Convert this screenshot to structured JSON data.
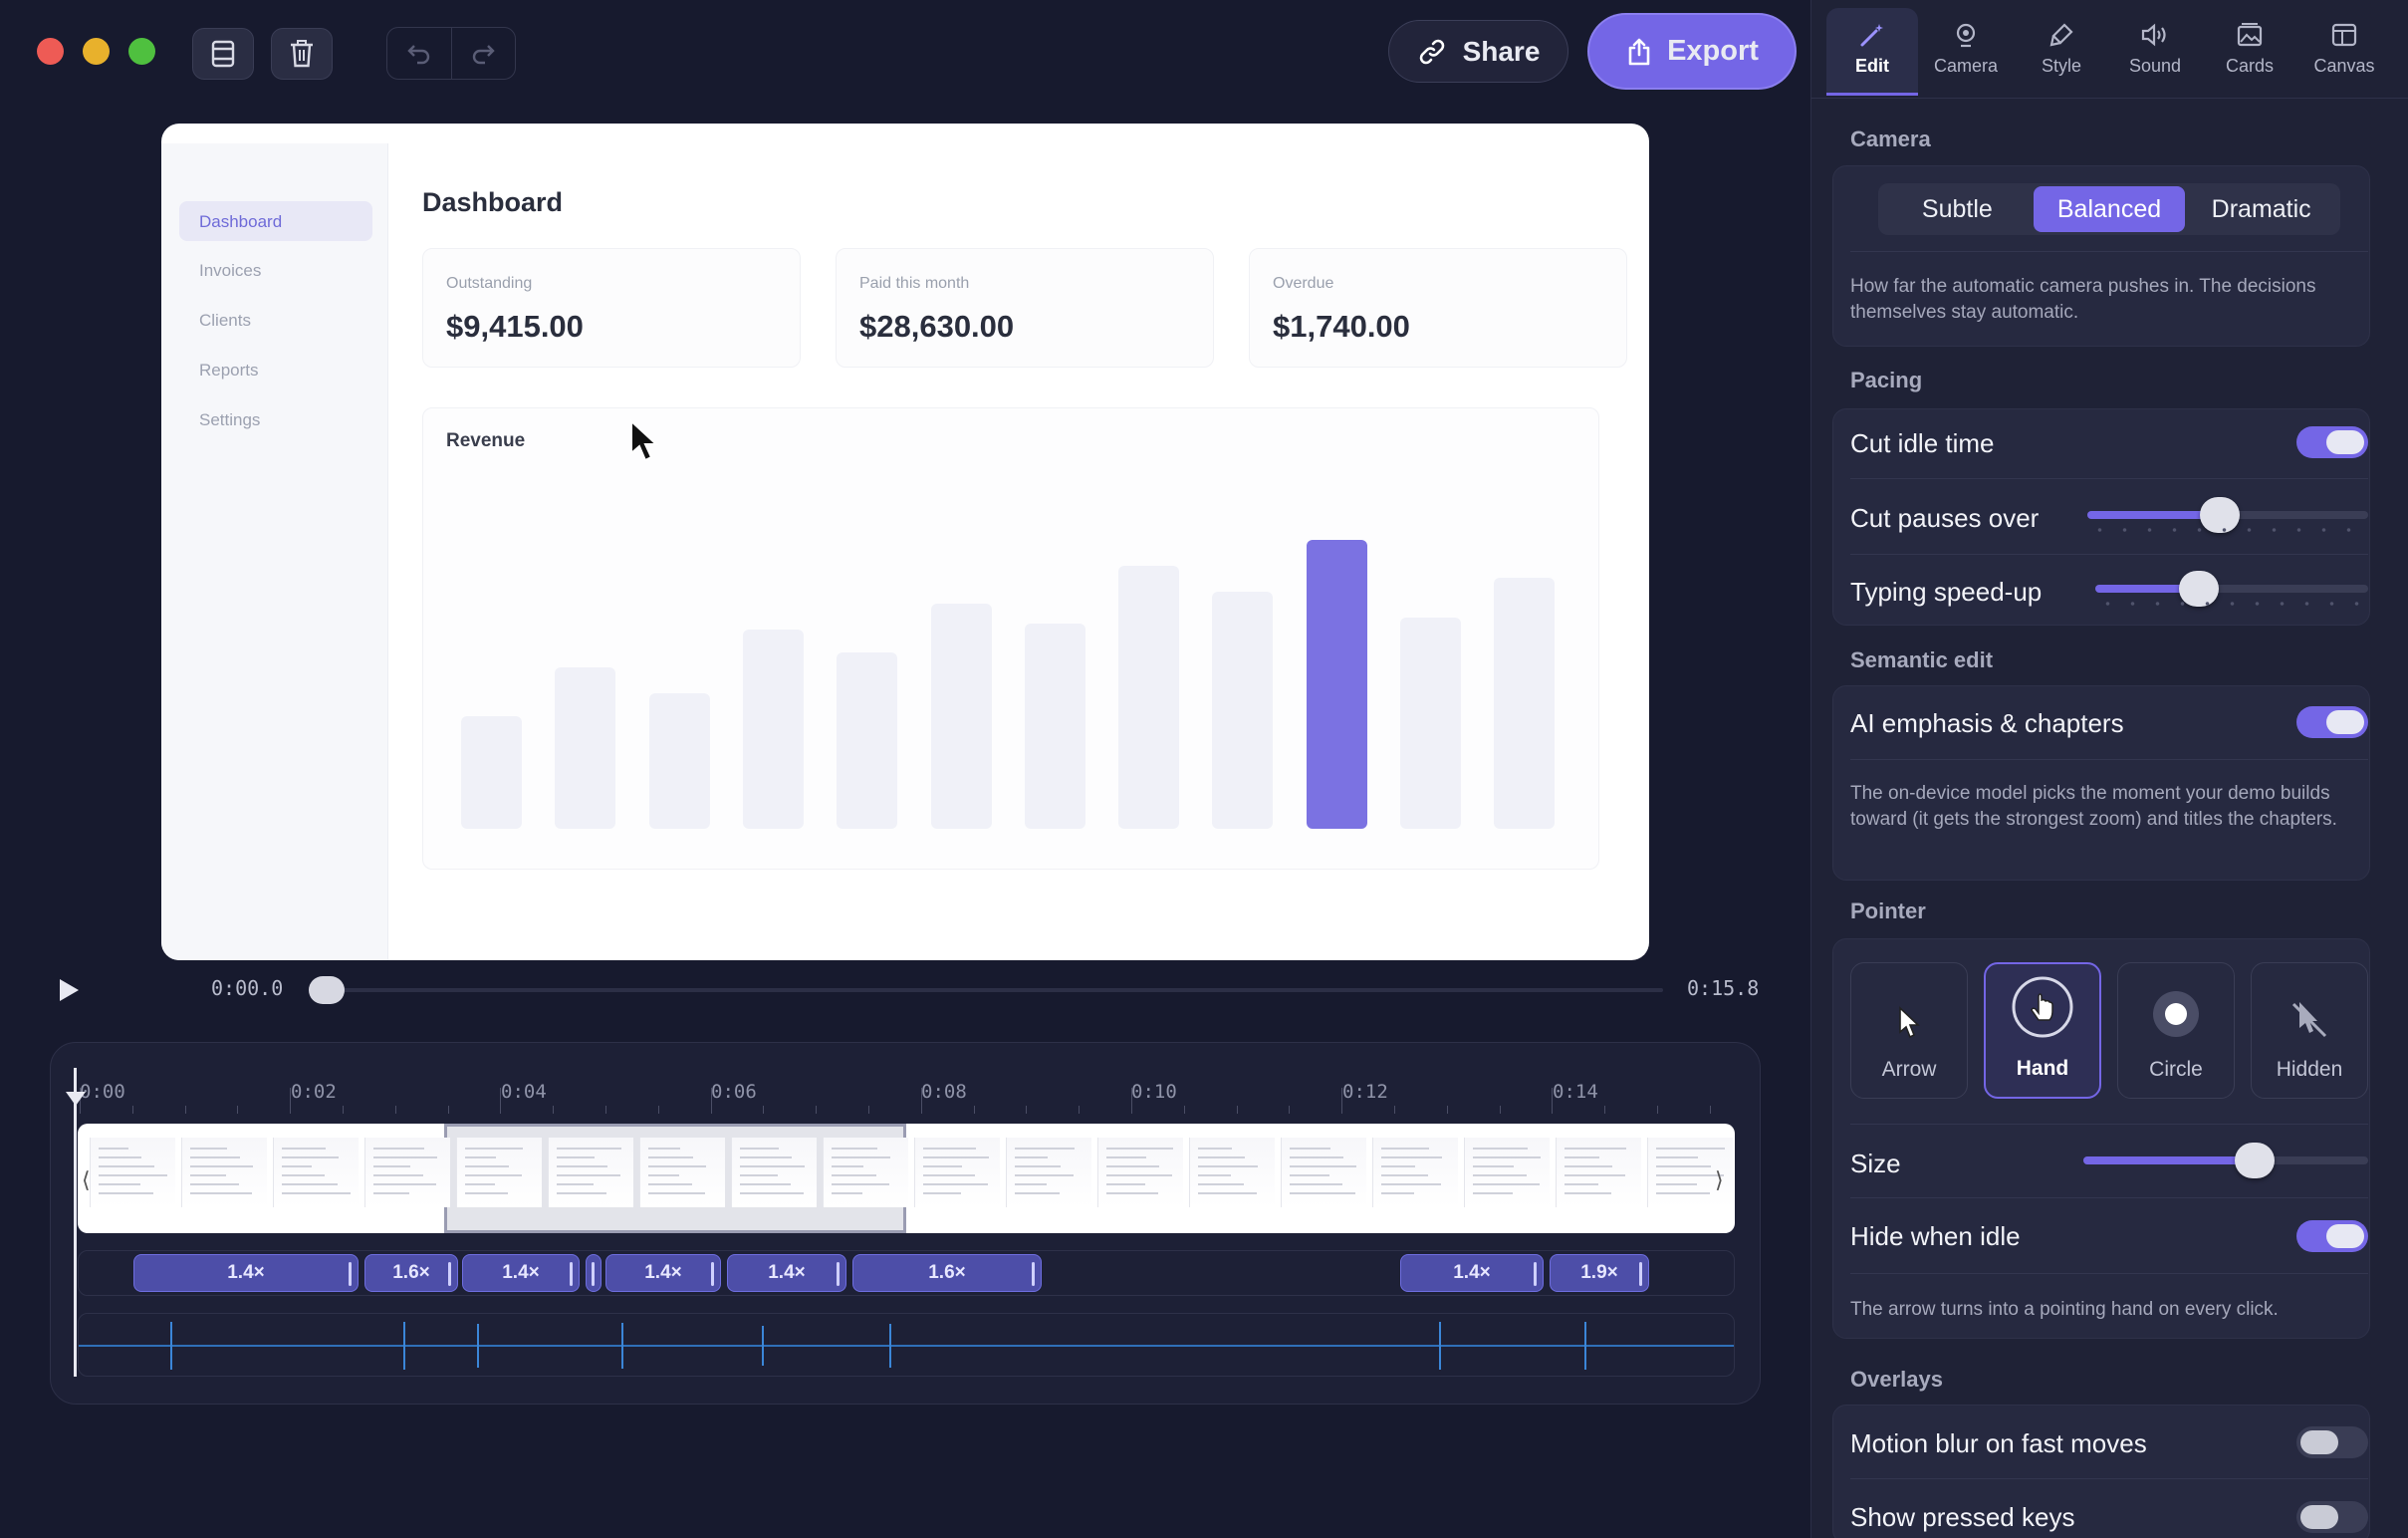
{
  "toolbar": {
    "share_label": "Share",
    "export_label": "Export",
    "icons": [
      "film-icon",
      "trash-icon",
      "undo-icon",
      "redo-icon",
      "link-icon",
      "upload-icon"
    ]
  },
  "preview": {
    "title": "Dashboard",
    "nav": [
      "Dashboard",
      "Invoices",
      "Clients",
      "Reports",
      "Settings"
    ],
    "cards": [
      {
        "label": "Outstanding",
        "value": "$9,415.00"
      },
      {
        "label": "Paid this month",
        "value": "$28,630.00"
      },
      {
        "label": "Overdue",
        "value": "$1,740.00"
      }
    ],
    "revenue_title": "Revenue",
    "revenue_bars": [
      0.39,
      0.56,
      0.47,
      0.69,
      0.61,
      0.78,
      0.71,
      0.91,
      0.82,
      1.0,
      0.73,
      0.87
    ],
    "highlight_bar": 9,
    "highlight_color": "#7b72e2"
  },
  "playback": {
    "current": "0:00.0",
    "total": "0:15.8",
    "progress": 0.0
  },
  "timeline": {
    "ticks": [
      "0:00",
      "0:02",
      "0:04",
      "0:06",
      "0:08",
      "0:10",
      "0:12",
      "0:14"
    ],
    "zooms": [
      "1.4×",
      "1.6×",
      "1.4×",
      "1.4×",
      "1.4×",
      "1.6×",
      "1.4×",
      "1.9×"
    ]
  },
  "panel": {
    "tabs": [
      {
        "label": "Edit",
        "icon": "magic-wand-icon"
      },
      {
        "label": "Camera",
        "icon": "camera-icon"
      },
      {
        "label": "Style",
        "icon": "brush-icon"
      },
      {
        "label": "Sound",
        "icon": "speaker-icon"
      },
      {
        "label": "Cards",
        "icon": "cards-icon"
      },
      {
        "label": "Canvas",
        "icon": "canvas-icon"
      }
    ],
    "active_tab": "Edit",
    "camera": {
      "title": "Camera",
      "options": [
        "Subtle",
        "Balanced",
        "Dramatic"
      ],
      "selected": "Balanced",
      "help": "How far the automatic camera pushes in. The decisions themselves stay automatic."
    },
    "pacing": {
      "title": "Pacing",
      "cut_idle": "Cut idle time",
      "cut_idle_on": true,
      "cut_pauses": "Cut pauses over",
      "cut_pauses_value": 0.47,
      "typing": "Typing speed-up",
      "typing_value": 0.38
    },
    "semantic": {
      "title": "Semantic edit",
      "ai": "AI emphasis & chapters",
      "ai_on": true,
      "help": "The on-device model picks the moment your demo builds toward (it gets the strongest zoom) and titles the chapters."
    },
    "pointer": {
      "title": "Pointer",
      "options": [
        "Arrow",
        "Hand",
        "Circle",
        "Hidden"
      ],
      "selected": "Hand",
      "size": "Size",
      "size_value": 0.6,
      "hide_idle": "Hide when idle",
      "hide_idle_on": true,
      "help": "The arrow turns into a pointing hand on every click."
    },
    "overlays": {
      "title": "Overlays",
      "motion_blur": "Motion blur on fast moves",
      "motion_blur_on": false,
      "pressed_keys": "Show pressed keys",
      "pressed_keys_on": false
    }
  },
  "colors": {
    "accent": "#7466e6",
    "background": "#171a2e",
    "panel": "#1f2236"
  }
}
